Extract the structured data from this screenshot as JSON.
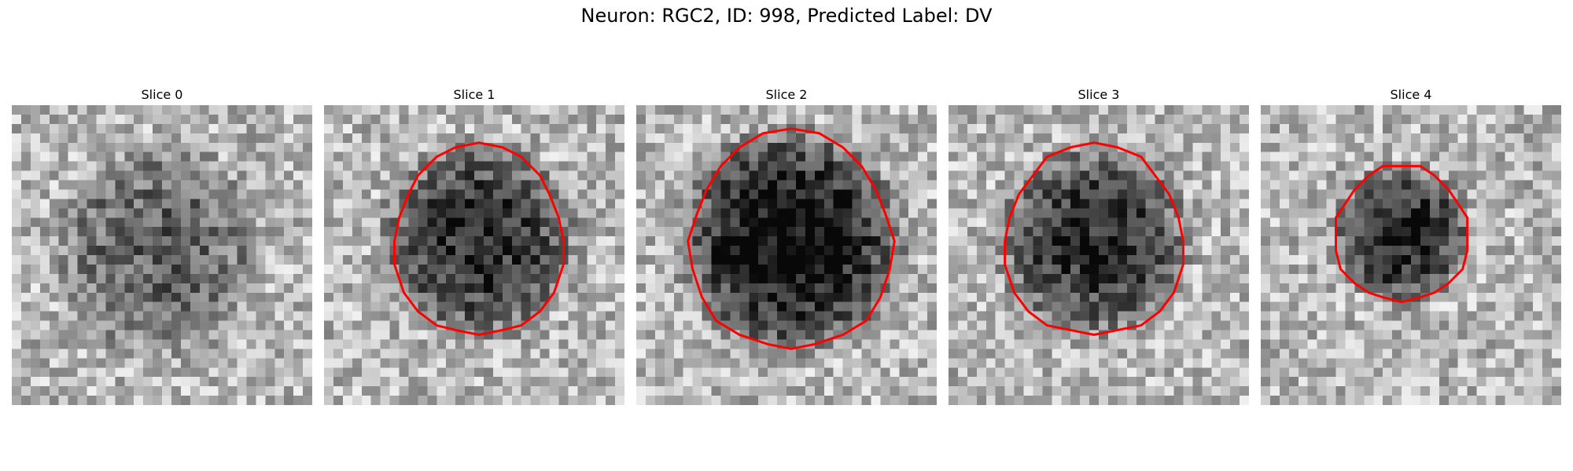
{
  "figure": {
    "title": "Neuron: RGC2, ID: 998, Predicted Label: DV"
  },
  "colors": {
    "contour": "#ff0000",
    "background": "#ffffff"
  },
  "panels": [
    {
      "title": "Slice 0",
      "seed": 11,
      "has_contour": false
    },
    {
      "title": "Slice 1",
      "seed": 23,
      "has_contour": true
    },
    {
      "title": "Slice 2",
      "seed": 37,
      "has_contour": true
    },
    {
      "title": "Slice 3",
      "seed": 53,
      "has_contour": true
    },
    {
      "title": "Slice 4",
      "seed": 71,
      "has_contour": true
    }
  ]
}
